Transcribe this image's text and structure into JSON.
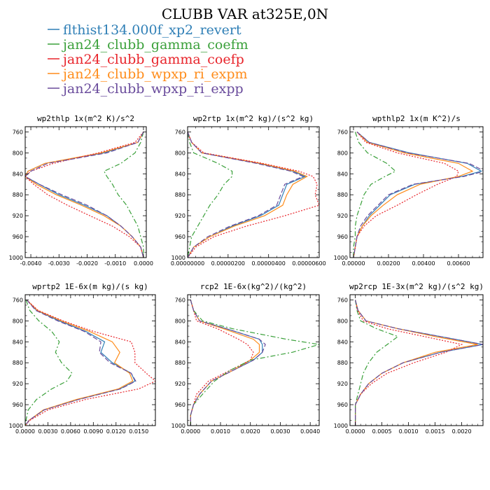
{
  "figure_title": "CLUBB VAR at325E,0N",
  "legend": [
    {
      "label": "flthist134.000f_xp2_revert",
      "color": "#2f7fb6",
      "dash": "solid"
    },
    {
      "label": "jan24_clubb_gamma_coefm",
      "color": "#3aa03a",
      "dash": "dashdot"
    },
    {
      "label": "jan24_clubb_gamma_coefp",
      "color": "#e8242b",
      "dash": "dotted"
    },
    {
      "label": "jan24_clubb_wpxp_ri_expm",
      "color": "#ff8c1a",
      "dash": "solid"
    },
    {
      "label": "jan24_clubb_wpxp_ri_expp",
      "color": "#6a4c9c",
      "dash": "dashed"
    }
  ],
  "chart_data": [
    {
      "type": "line",
      "title": "wp2thlp  1x(m^2 K)/s^2",
      "xlim": [
        -0.0042,
        0.0001
      ],
      "ylim": [
        1000,
        750
      ],
      "xticks": [
        -0.004,
        -0.003,
        -0.002,
        -0.001,
        0.0
      ],
      "xtick_labels": [
        "-0.0040",
        "-0.0030",
        "-0.0020",
        "-0.0010",
        "0.0000"
      ],
      "yticks": [
        760,
        800,
        840,
        880,
        920,
        960,
        1000
      ],
      "y": [
        760,
        780,
        800,
        820,
        835,
        845,
        860,
        880,
        900,
        920,
        940,
        960,
        980,
        1000
      ],
      "series": [
        {
          "name": "flthist134.000f_xp2_revert",
          "values": [
            0.0,
            -0.0002,
            -0.0014,
            -0.0035,
            -0.0041,
            -0.0042,
            -0.0037,
            -0.003,
            -0.0021,
            -0.0013,
            -0.0008,
            -0.0004,
            -0.0001,
            0.0
          ]
        },
        {
          "name": "jan24_clubb_gamma_coefm",
          "values": [
            0.0,
            -0.0001,
            -0.0003,
            -0.0008,
            -0.0014,
            -0.0013,
            -0.0011,
            -0.0009,
            -0.0006,
            -0.0004,
            -0.0002,
            -0.0001,
            0.0,
            0.0
          ]
        },
        {
          "name": "jan24_clubb_gamma_coefp",
          "values": [
            0.0,
            -0.0003,
            -0.0016,
            -0.0032,
            -0.004,
            -0.0042,
            -0.0039,
            -0.0034,
            -0.0027,
            -0.0019,
            -0.0011,
            -0.0005,
            -0.0001,
            0.0
          ]
        },
        {
          "name": "jan24_clubb_wpxp_ri_expm",
          "values": [
            0.0,
            -0.0002,
            -0.0015,
            -0.0035,
            -0.0041,
            -0.0042,
            -0.0038,
            -0.0031,
            -0.0022,
            -0.0014,
            -0.0008,
            -0.0004,
            -0.0001,
            0.0
          ]
        },
        {
          "name": "jan24_clubb_wpxp_ri_expp",
          "values": [
            0.0,
            -0.0002,
            -0.0013,
            -0.0034,
            -0.004,
            -0.0042,
            -0.0037,
            -0.0029,
            -0.002,
            -0.0013,
            -0.0008,
            -0.0004,
            -0.0001,
            0.0
          ]
        }
      ]
    },
    {
      "type": "line",
      "title": "wp2rtp  1x(m^2 kg)/(s^2 kg)",
      "xlim": [
        0.0,
        6.5e-06
      ],
      "ylim": [
        1000,
        750
      ],
      "xticks": [
        0.0,
        2e-06,
        4e-06,
        6e-06
      ],
      "xtick_labels": [
        "0.00000000",
        "0.00000200",
        "0.00000400",
        "0.00000600"
      ],
      "yticks": [
        760,
        800,
        840,
        880,
        920,
        960,
        1000
      ],
      "y": [
        760,
        780,
        800,
        820,
        835,
        845,
        860,
        880,
        900,
        920,
        940,
        960,
        980,
        1000
      ],
      "series": [
        {
          "name": "flthist134.000f_xp2_revert",
          "values": [
            0.0,
            2e-07,
            7e-07,
            3.5e-06,
            5.2e-06,
            5.8e-06,
            4.9e-06,
            4.7e-06,
            4.5e-06,
            3.6e-06,
            2.2e-06,
            1.1e-06,
            3e-07,
            0.0
          ]
        },
        {
          "name": "jan24_clubb_gamma_coefm",
          "values": [
            0.0,
            1e-07,
            3e-07,
            1.5e-06,
            2.2e-06,
            2.2e-06,
            1.8e-06,
            1.5e-06,
            1.1e-06,
            8e-07,
            5e-07,
            2e-07,
            1e-07,
            0.0
          ]
        },
        {
          "name": "jan24_clubb_gamma_coefp",
          "values": [
            0.0,
            2e-07,
            8e-07,
            3.7e-06,
            5.5e-06,
            6.2e-06,
            6.4e-06,
            6.3e-06,
            6.5e-06,
            4.8e-06,
            2.9e-06,
            1.3e-06,
            4e-07,
            0.0
          ]
        },
        {
          "name": "jan24_clubb_wpxp_ri_expm",
          "values": [
            0.0,
            2e-07,
            7e-07,
            3.6e-06,
            5.3e-06,
            5.9e-06,
            5.2e-06,
            4.9e-06,
            4.7e-06,
            3.8e-06,
            2.3e-06,
            1.1e-06,
            3e-07,
            0.0
          ]
        },
        {
          "name": "jan24_clubb_wpxp_ri_expp",
          "values": [
            0.0,
            2e-07,
            7e-07,
            3.4e-06,
            5.1e-06,
            5.7e-06,
            4.8e-06,
            4.6e-06,
            4.4e-06,
            3.5e-06,
            2.1e-06,
            1e-06,
            3e-07,
            0.0
          ]
        }
      ]
    },
    {
      "type": "line",
      "title": "wpthlp2  1x(m K^2)/s",
      "xlim": [
        -0.0002,
        0.0074
      ],
      "ylim": [
        1000,
        750
      ],
      "xticks": [
        0.0,
        0.002,
        0.004,
        0.006
      ],
      "xtick_labels": [
        "0.00000",
        "0.00200",
        "0.00400",
        "0.00600"
      ],
      "yticks": [
        760,
        800,
        840,
        880,
        920,
        960,
        1000
      ],
      "y": [
        760,
        780,
        800,
        820,
        835,
        845,
        860,
        880,
        900,
        920,
        940,
        960,
        980,
        1000
      ],
      "series": [
        {
          "name": "flthist134.000f_xp2_revert",
          "values": [
            0.0002,
            0.0009,
            0.0032,
            0.0065,
            0.0073,
            0.0062,
            0.0035,
            0.0021,
            0.0015,
            0.0009,
            0.0005,
            0.0002,
            0.0001,
            0.0
          ]
        },
        {
          "name": "jan24_clubb_gamma_coefm",
          "values": [
            0.0001,
            0.0003,
            0.0008,
            0.0019,
            0.0024,
            0.0018,
            0.001,
            0.0006,
            0.0004,
            0.0002,
            0.0001,
            0.0001,
            0.0,
            0.0
          ]
        },
        {
          "name": "jan24_clubb_gamma_coefp",
          "values": [
            0.0002,
            0.0007,
            0.0025,
            0.0052,
            0.006,
            0.0059,
            0.0048,
            0.0036,
            0.0025,
            0.0013,
            0.0006,
            0.0002,
            0.0001,
            0.0
          ]
        },
        {
          "name": "jan24_clubb_wpxp_ri_expm",
          "values": [
            0.0002,
            0.0008,
            0.0029,
            0.006,
            0.0068,
            0.006,
            0.0038,
            0.0025,
            0.0017,
            0.001,
            0.0005,
            0.0002,
            0.0001,
            0.0
          ]
        },
        {
          "name": "jan24_clubb_wpxp_ri_expp",
          "values": [
            0.0002,
            0.0009,
            0.0031,
            0.0066,
            0.0075,
            0.0063,
            0.0034,
            0.002,
            0.0014,
            0.0008,
            0.0004,
            0.0002,
            0.0001,
            0.0
          ]
        }
      ]
    },
    {
      "type": "line",
      "title": "wprtp2  1E-6x(m kg)/(s kg)",
      "xlim": [
        0.0,
        0.0172
      ],
      "ylim": [
        1000,
        750
      ],
      "xticks": [
        0.0,
        0.003,
        0.006,
        0.009,
        0.012,
        0.015
      ],
      "xtick_labels": [
        "0.0000",
        "0.0030",
        "0.0060",
        "0.0090",
        "0.0120",
        "0.0150"
      ],
      "yticks": [
        760,
        800,
        840,
        880,
        920,
        960,
        1000
      ],
      "y": [
        760,
        780,
        800,
        820,
        840,
        860,
        880,
        900,
        915,
        930,
        950,
        970,
        990,
        1000
      ],
      "series": [
        {
          "name": "flthist134.000f_xp2_revert",
          "values": [
            0.0002,
            0.0015,
            0.0045,
            0.008,
            0.0105,
            0.01,
            0.0115,
            0.014,
            0.0145,
            0.0125,
            0.007,
            0.0025,
            0.0005,
            0.0
          ]
        },
        {
          "name": "jan24_clubb_gamma_coefm",
          "values": [
            0.0001,
            0.0006,
            0.0018,
            0.0035,
            0.0045,
            0.004,
            0.0048,
            0.0062,
            0.0055,
            0.0035,
            0.0015,
            0.0004,
            0.0001,
            0.0
          ]
        },
        {
          "name": "jan24_clubb_gamma_coefp",
          "values": [
            0.0002,
            0.0017,
            0.005,
            0.009,
            0.014,
            0.0145,
            0.0145,
            0.016,
            0.0172,
            0.015,
            0.008,
            0.003,
            0.0006,
            0.0
          ]
        },
        {
          "name": "jan24_clubb_wpxp_ri_expm",
          "values": [
            0.0002,
            0.0016,
            0.0048,
            0.0085,
            0.0115,
            0.0125,
            0.0118,
            0.0138,
            0.0142,
            0.0123,
            0.0068,
            0.0024,
            0.0005,
            0.0
          ]
        },
        {
          "name": "jan24_clubb_wpxp_ri_expp",
          "values": [
            0.0002,
            0.0014,
            0.0043,
            0.0078,
            0.01,
            0.0098,
            0.0112,
            0.014,
            0.0146,
            0.0126,
            0.0071,
            0.0025,
            0.0005,
            0.0
          ]
        }
      ]
    },
    {
      "type": "line",
      "title": "rcp2  1E-6x(kg^2)/(kg^2)",
      "xlim": [
        -0.0001,
        0.0043
      ],
      "ylim": [
        1000,
        750
      ],
      "xticks": [
        0.0,
        0.001,
        0.002,
        0.003,
        0.004
      ],
      "xtick_labels": [
        "0.0000",
        "0.0010",
        "0.0020",
        "0.0030",
        "0.0040"
      ],
      "yticks": [
        760,
        800,
        840,
        880,
        920,
        960,
        1000
      ],
      "y": [
        760,
        780,
        800,
        815,
        835,
        845,
        860,
        875,
        895,
        915,
        940,
        960,
        980,
        1000
      ],
      "series": [
        {
          "name": "flthist134.000f_xp2_revert",
          "values": [
            0.0,
            0.0001,
            0.0003,
            0.0012,
            0.0023,
            0.0024,
            0.0024,
            0.0021,
            0.0014,
            0.0007,
            0.0003,
            0.0001,
            0.0,
            0.0
          ]
        },
        {
          "name": "jan24_clubb_gamma_coefm",
          "values": [
            0.0,
            0.0001,
            0.0004,
            0.0014,
            0.0032,
            0.0043,
            0.0034,
            0.002,
            0.0013,
            0.0008,
            0.0004,
            0.0001,
            0.0,
            0.0
          ]
        },
        {
          "name": "jan24_clubb_gamma_coefp",
          "values": [
            0.0,
            0.0001,
            0.0002,
            0.0009,
            0.0016,
            0.0019,
            0.0021,
            0.002,
            0.0013,
            0.0006,
            0.0002,
            0.0001,
            0.0,
            0.0
          ]
        },
        {
          "name": "jan24_clubb_wpxp_ri_expm",
          "values": [
            0.0,
            0.0001,
            0.0003,
            0.0011,
            0.0021,
            0.0023,
            0.0023,
            0.002,
            0.0014,
            0.0007,
            0.0003,
            0.0001,
            0.0,
            0.0
          ]
        },
        {
          "name": "jan24_clubb_wpxp_ri_expp",
          "values": [
            0.0,
            0.0001,
            0.0003,
            0.0012,
            0.0023,
            0.0025,
            0.0024,
            0.0021,
            0.0014,
            0.0007,
            0.0003,
            0.0001,
            0.0,
            0.0
          ]
        }
      ]
    },
    {
      "type": "line",
      "title": "wp2rcp  1E-3x(m^2 kg)/(s^2 kg)",
      "xlim": [
        -0.0001,
        0.0024
      ],
      "ylim": [
        1000,
        750
      ],
      "xticks": [
        0.0,
        0.0005,
        0.001,
        0.0015,
        0.002
      ],
      "xtick_labels": [
        "0.0000",
        "0.0005",
        "0.0010",
        "0.0015",
        "0.0020"
      ],
      "yticks": [
        760,
        800,
        840,
        880,
        920,
        960,
        1000
      ],
      "y": [
        760,
        780,
        800,
        815,
        830,
        845,
        860,
        880,
        900,
        920,
        940,
        960,
        980,
        1000
      ],
      "series": [
        {
          "name": "flthist134.000f_xp2_revert",
          "values": [
            0.0,
            5e-05,
            0.0002,
            0.0008,
            0.0016,
            0.0024,
            0.0016,
            0.0009,
            0.0005,
            0.00025,
            0.0001,
            0.0,
            0.0,
            0.0
          ]
        },
        {
          "name": "jan24_clubb_gamma_coefm",
          "values": [
            0.0,
            3e-05,
            0.0001,
            0.0004,
            0.0008,
            0.0006,
            0.0004,
            0.00025,
            0.00015,
            0.0001,
            5e-05,
            0.0,
            0.0,
            0.0
          ]
        },
        {
          "name": "jan24_clubb_gamma_coefp",
          "values": [
            0.0,
            4e-05,
            0.00015,
            0.0006,
            0.0013,
            0.002,
            0.0017,
            0.0011,
            0.0006,
            0.0003,
            0.0001,
            0.0,
            0.0,
            0.0
          ]
        },
        {
          "name": "jan24_clubb_wpxp_ri_expm",
          "values": [
            0.0,
            5e-05,
            0.0002,
            0.0008,
            0.0015,
            0.0023,
            0.0015,
            0.0009,
            0.0005,
            0.00025,
            0.0001,
            0.0,
            0.0,
            0.0
          ]
        },
        {
          "name": "jan24_clubb_wpxp_ri_expp",
          "values": [
            0.0,
            5e-05,
            0.0002,
            0.0008,
            0.0016,
            0.0024,
            0.0016,
            0.0009,
            0.0005,
            0.00025,
            0.0001,
            0.0,
            0.0,
            0.0
          ]
        }
      ]
    }
  ]
}
